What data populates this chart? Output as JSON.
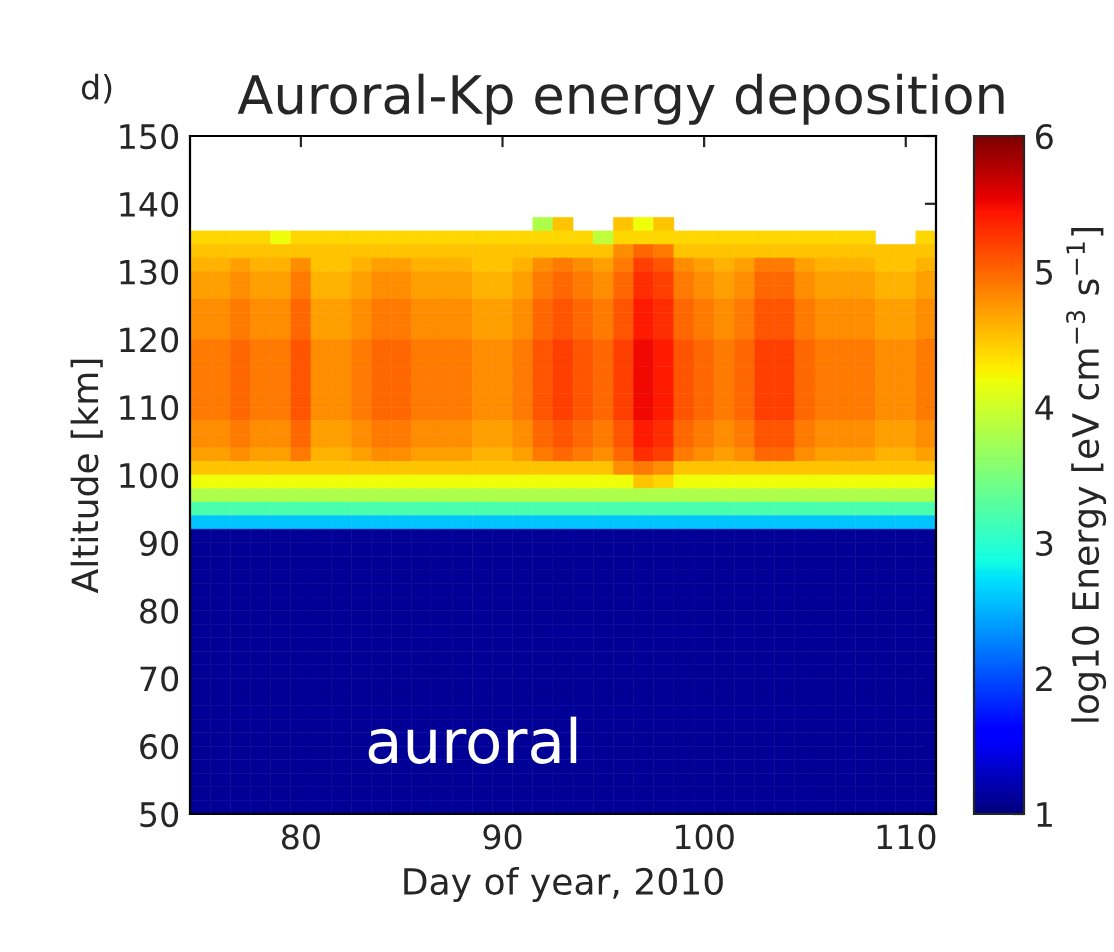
{
  "chart_data": {
    "type": "heatmap",
    "title": "Auroral-Kp energy deposition",
    "xlabel": "Day of year, 2010",
    "ylabel": "Altitude [km]",
    "clabel": "log10 Energy [eV cm$^{−3}$ s$^{−1}$]",
    "annotations": [
      "d)",
      "auroral"
    ],
    "x": [
      75,
      76,
      77,
      78,
      79,
      80,
      81,
      82,
      83,
      84,
      85,
      86,
      87,
      88,
      89,
      90,
      91,
      92,
      93,
      94,
      95,
      96,
      97,
      98,
      99,
      100,
      101,
      102,
      103,
      104,
      105,
      106,
      107,
      108,
      109,
      110,
      111
    ],
    "y": [
      137,
      135,
      133,
      131,
      129,
      127,
      125,
      123,
      121,
      119,
      117,
      115,
      113,
      111,
      109,
      107,
      105,
      103,
      101,
      99,
      97,
      95,
      93,
      91,
      89,
      87,
      85,
      83,
      81,
      79,
      77,
      75,
      73,
      71,
      69,
      67,
      65,
      63,
      61,
      59,
      57,
      55,
      53,
      51
    ],
    "cells": [
      [
        null,
        null,
        null,
        null,
        null,
        null,
        null,
        null,
        null,
        null,
        null,
        null,
        null,
        null,
        null,
        null,
        null,
        3.8,
        4.5,
        null,
        null,
        4.5,
        4.2,
        4.5,
        null,
        null,
        null,
        null,
        null,
        null,
        null,
        null,
        null,
        null,
        null,
        null,
        null
      ],
      [
        4.4,
        4.4,
        4.4,
        4.4,
        4.2,
        4.4,
        4.4,
        4.4,
        4.4,
        4.4,
        4.4,
        4.4,
        4.4,
        4.4,
        4.4,
        4.4,
        4.4,
        4.4,
        4.4,
        4.4,
        3.9,
        4.4,
        4.4,
        4.4,
        4.4,
        4.4,
        4.4,
        4.4,
        4.4,
        4.4,
        4.4,
        4.4,
        4.4,
        4.4,
        null,
        null,
        4.4
      ],
      [
        4.5,
        4.5,
        4.5,
        4.5,
        4.5,
        4.5,
        4.5,
        4.5,
        4.5,
        4.5,
        4.5,
        4.5,
        4.5,
        4.5,
        4.5,
        4.5,
        4.5,
        4.5,
        4.5,
        4.5,
        4.5,
        4.8,
        5.0,
        4.9,
        4.5,
        4.5,
        4.5,
        4.5,
        4.5,
        4.5,
        4.5,
        4.5,
        4.5,
        4.5,
        4.5,
        4.5,
        4.5
      ],
      [
        4.6,
        4.6,
        4.7,
        4.6,
        4.6,
        4.8,
        4.5,
        4.5,
        4.6,
        4.7,
        4.7,
        4.6,
        4.6,
        4.6,
        4.5,
        4.5,
        4.6,
        4.8,
        4.9,
        4.8,
        4.7,
        4.9,
        5.2,
        5.1,
        4.8,
        4.7,
        4.6,
        4.7,
        4.9,
        4.9,
        4.7,
        4.6,
        4.6,
        4.6,
        4.5,
        4.5,
        4.6
      ],
      [
        4.7,
        4.7,
        4.8,
        4.7,
        4.7,
        4.9,
        4.6,
        4.6,
        4.7,
        4.8,
        4.8,
        4.7,
        4.7,
        4.7,
        4.6,
        4.6,
        4.7,
        4.9,
        5.0,
        4.9,
        4.8,
        5.0,
        5.3,
        5.2,
        4.9,
        4.8,
        4.7,
        4.8,
        5.0,
        5.0,
        4.8,
        4.7,
        4.7,
        4.7,
        4.6,
        4.6,
        4.7
      ],
      [
        4.7,
        4.7,
        4.8,
        4.7,
        4.7,
        4.9,
        4.6,
        4.6,
        4.7,
        4.8,
        4.8,
        4.7,
        4.7,
        4.7,
        4.6,
        4.6,
        4.7,
        4.9,
        5.0,
        4.9,
        4.8,
        5.0,
        5.3,
        5.2,
        4.9,
        4.8,
        4.7,
        4.8,
        5.0,
        5.0,
        4.8,
        4.7,
        4.7,
        4.7,
        4.6,
        4.6,
        4.7
      ],
      [
        4.8,
        4.8,
        4.9,
        4.8,
        4.8,
        5.0,
        4.7,
        4.7,
        4.8,
        4.9,
        4.9,
        4.8,
        4.8,
        4.8,
        4.7,
        4.7,
        4.8,
        5.0,
        5.1,
        5.0,
        4.9,
        5.1,
        5.4,
        5.3,
        5.0,
        4.9,
        4.8,
        4.9,
        5.1,
        5.1,
        4.9,
        4.8,
        4.8,
        4.8,
        4.7,
        4.7,
        4.8
      ],
      [
        4.8,
        4.8,
        4.9,
        4.8,
        4.8,
        5.0,
        4.7,
        4.7,
        4.8,
        4.9,
        4.9,
        4.8,
        4.8,
        4.8,
        4.7,
        4.7,
        4.8,
        5.0,
        5.1,
        5.0,
        4.9,
        5.1,
        5.4,
        5.3,
        5.0,
        4.9,
        4.8,
        4.9,
        5.1,
        5.1,
        4.9,
        4.8,
        4.8,
        4.8,
        4.7,
        4.7,
        4.8
      ],
      [
        4.8,
        4.8,
        4.9,
        4.8,
        4.8,
        5.0,
        4.7,
        4.7,
        4.8,
        4.9,
        4.9,
        4.8,
        4.8,
        4.8,
        4.7,
        4.7,
        4.8,
        5.0,
        5.1,
        5.0,
        4.9,
        5.1,
        5.4,
        5.3,
        5.0,
        4.9,
        4.8,
        4.9,
        5.1,
        5.1,
        4.9,
        4.8,
        4.8,
        4.8,
        4.7,
        4.7,
        4.8
      ],
      [
        4.9,
        4.9,
        5.0,
        4.9,
        4.9,
        5.1,
        4.8,
        4.8,
        4.9,
        5.0,
        5.0,
        4.9,
        4.9,
        4.9,
        4.8,
        4.8,
        4.9,
        5.1,
        5.2,
        5.1,
        5.0,
        5.2,
        5.5,
        5.4,
        5.1,
        5.0,
        4.9,
        5.0,
        5.2,
        5.2,
        5.0,
        4.9,
        4.9,
        4.9,
        4.8,
        4.8,
        4.9
      ],
      [
        4.9,
        4.9,
        5.0,
        4.9,
        4.9,
        5.1,
        4.8,
        4.8,
        4.9,
        5.0,
        5.0,
        4.9,
        4.9,
        4.9,
        4.8,
        4.8,
        4.9,
        5.1,
        5.2,
        5.1,
        5.0,
        5.2,
        5.5,
        5.4,
        5.1,
        5.0,
        4.9,
        5.0,
        5.2,
        5.2,
        5.0,
        4.9,
        4.9,
        4.9,
        4.8,
        4.8,
        4.9
      ],
      [
        4.9,
        4.9,
        5.0,
        4.9,
        4.9,
        5.1,
        4.8,
        4.8,
        4.9,
        5.0,
        5.0,
        4.9,
        4.9,
        4.9,
        4.8,
        4.8,
        4.9,
        5.1,
        5.2,
        5.1,
        5.0,
        5.2,
        5.5,
        5.4,
        5.1,
        5.0,
        4.9,
        5.0,
        5.2,
        5.2,
        5.0,
        4.9,
        4.9,
        4.9,
        4.8,
        4.8,
        4.9
      ],
      [
        4.9,
        4.9,
        5.0,
        4.9,
        4.9,
        5.1,
        4.8,
        4.8,
        4.9,
        5.0,
        5.0,
        4.9,
        4.9,
        4.9,
        4.8,
        4.8,
        4.9,
        5.1,
        5.2,
        5.1,
        5.0,
        5.2,
        5.5,
        5.4,
        5.1,
        5.0,
        4.9,
        5.0,
        5.2,
        5.2,
        5.0,
        4.9,
        4.9,
        4.9,
        4.8,
        4.8,
        4.9
      ],
      [
        4.9,
        4.9,
        5.0,
        4.9,
        4.9,
        5.1,
        4.8,
        4.8,
        4.9,
        5.0,
        5.0,
        4.9,
        4.9,
        4.9,
        4.8,
        4.8,
        4.9,
        5.1,
        5.2,
        5.1,
        5.0,
        5.2,
        5.5,
        5.4,
        5.1,
        5.0,
        4.9,
        5.0,
        5.2,
        5.2,
        5.0,
        4.9,
        4.9,
        4.9,
        4.8,
        4.8,
        4.9
      ],
      [
        4.9,
        4.9,
        5.0,
        4.9,
        4.9,
        5.1,
        4.8,
        4.8,
        4.9,
        5.0,
        5.0,
        4.9,
        4.9,
        4.9,
        4.8,
        4.8,
        4.9,
        5.1,
        5.2,
        5.1,
        5.0,
        5.2,
        5.5,
        5.4,
        5.1,
        5.0,
        4.9,
        5.0,
        5.2,
        5.2,
        5.0,
        4.9,
        4.9,
        4.9,
        4.8,
        4.8,
        4.9
      ],
      [
        4.8,
        4.8,
        4.9,
        4.8,
        4.8,
        5.0,
        4.7,
        4.7,
        4.8,
        4.9,
        4.9,
        4.8,
        4.8,
        4.8,
        4.7,
        4.7,
        4.8,
        5.0,
        5.1,
        5.0,
        4.9,
        5.1,
        5.4,
        5.3,
        5.0,
        4.9,
        4.8,
        4.9,
        5.1,
        5.1,
        4.9,
        4.8,
        4.8,
        4.8,
        4.7,
        4.7,
        4.8
      ],
      [
        4.8,
        4.8,
        4.9,
        4.8,
        4.8,
        5.0,
        4.7,
        4.7,
        4.8,
        4.9,
        4.9,
        4.8,
        4.8,
        4.8,
        4.7,
        4.7,
        4.8,
        5.0,
        5.1,
        5.0,
        4.9,
        5.1,
        5.4,
        5.3,
        5.0,
        4.9,
        4.8,
        4.9,
        5.1,
        5.1,
        4.9,
        4.8,
        4.8,
        4.8,
        4.7,
        4.7,
        4.8
      ],
      [
        4.7,
        4.7,
        4.8,
        4.7,
        4.7,
        4.9,
        4.6,
        4.6,
        4.7,
        4.8,
        4.8,
        4.7,
        4.7,
        4.7,
        4.6,
        4.6,
        4.7,
        4.9,
        5.0,
        4.9,
        4.8,
        5.0,
        5.3,
        5.2,
        4.9,
        4.8,
        4.7,
        4.8,
        5.0,
        5.0,
        4.8,
        4.7,
        4.7,
        4.7,
        4.6,
        4.6,
        4.7
      ],
      [
        4.5,
        4.5,
        4.5,
        4.5,
        4.5,
        4.5,
        4.5,
        4.5,
        4.5,
        4.5,
        4.5,
        4.5,
        4.5,
        4.5,
        4.5,
        4.5,
        4.5,
        4.5,
        4.5,
        4.5,
        4.5,
        4.8,
        4.9,
        4.8,
        4.5,
        4.5,
        4.5,
        4.5,
        4.5,
        4.5,
        4.5,
        4.5,
        4.5,
        4.5,
        4.5,
        4.5,
        4.5
      ],
      [
        4.2,
        4.2,
        4.2,
        4.2,
        4.2,
        4.2,
        4.2,
        4.2,
        4.2,
        4.2,
        4.2,
        4.2,
        4.2,
        4.2,
        4.2,
        4.2,
        4.2,
        4.2,
        4.2,
        4.2,
        4.2,
        4.2,
        4.5,
        4.4,
        4.2,
        4.2,
        4.2,
        4.2,
        4.2,
        4.2,
        4.2,
        4.2,
        4.2,
        4.2,
        4.2,
        4.2,
        4.2
      ],
      [
        3.8,
        3.8,
        3.8,
        3.8,
        3.8,
        3.8,
        3.8,
        3.8,
        3.8,
        3.8,
        3.8,
        3.8,
        3.8,
        3.8,
        3.8,
        3.8,
        3.8,
        3.8,
        3.8,
        3.8,
        3.8,
        3.8,
        3.8,
        3.8,
        3.8,
        3.8,
        3.8,
        3.8,
        3.8,
        3.8,
        3.8,
        3.8,
        3.8,
        3.8,
        3.8,
        3.8,
        3.8
      ],
      [
        3.2,
        3.2,
        3.2,
        3.2,
        3.2,
        3.2,
        3.2,
        3.2,
        3.2,
        3.2,
        3.2,
        3.2,
        3.2,
        3.2,
        3.2,
        3.2,
        3.2,
        3.2,
        3.2,
        3.2,
        3.2,
        3.2,
        3.2,
        3.2,
        3.2,
        3.2,
        3.2,
        3.2,
        3.2,
        3.2,
        3.2,
        3.2,
        3.2,
        3.2,
        3.2,
        3.2,
        3.2
      ],
      [
        2.6,
        2.6,
        2.6,
        2.6,
        2.6,
        2.6,
        2.6,
        2.6,
        2.6,
        2.6,
        2.6,
        2.6,
        2.6,
        2.6,
        2.6,
        2.6,
        2.6,
        2.6,
        2.6,
        2.6,
        2.6,
        2.6,
        2.6,
        2.6,
        2.6,
        2.6,
        2.6,
        2.6,
        2.6,
        2.6,
        2.6,
        2.6,
        2.6,
        2.6,
        2.6,
        2.6,
        2.6
      ],
      [
        1.1,
        1.1,
        1.1,
        1.1,
        1.1,
        1.1,
        1.1,
        1.1,
        1.1,
        1.1,
        1.1,
        1.1,
        1.1,
        1.1,
        1.1,
        1.1,
        1.1,
        1.1,
        1.1,
        1.1,
        1.1,
        1.1,
        1.1,
        1.1,
        1.1,
        1.1,
        1.1,
        1.1,
        1.1,
        1.1,
        1.1,
        1.1,
        1.1,
        1.1,
        1.1,
        1.1,
        1.1
      ],
      [
        1.1,
        1.1,
        1.1,
        1.1,
        1.1,
        1.1,
        1.1,
        1.1,
        1.1,
        1.1,
        1.1,
        1.1,
        1.1,
        1.1,
        1.1,
        1.1,
        1.1,
        1.1,
        1.1,
        1.1,
        1.1,
        1.1,
        1.1,
        1.1,
        1.1,
        1.1,
        1.1,
        1.1,
        1.1,
        1.1,
        1.1,
        1.1,
        1.1,
        1.1,
        1.1,
        1.1,
        1.1
      ],
      [
        1.1,
        1.1,
        1.1,
        1.1,
        1.1,
        1.1,
        1.1,
        1.1,
        1.1,
        1.1,
        1.1,
        1.1,
        1.1,
        1.1,
        1.1,
        1.1,
        1.1,
        1.1,
        1.1,
        1.1,
        1.1,
        1.1,
        1.1,
        1.1,
        1.1,
        1.1,
        1.1,
        1.1,
        1.1,
        1.1,
        1.1,
        1.1,
        1.1,
        1.1,
        1.1,
        1.1,
        1.1
      ],
      [
        1.1,
        1.1,
        1.1,
        1.1,
        1.1,
        1.1,
        1.1,
        1.1,
        1.1,
        1.1,
        1.1,
        1.1,
        1.1,
        1.1,
        1.1,
        1.1,
        1.1,
        1.1,
        1.1,
        1.1,
        1.1,
        1.1,
        1.1,
        1.1,
        1.1,
        1.1,
        1.1,
        1.1,
        1.1,
        1.1,
        1.1,
        1.1,
        1.1,
        1.1,
        1.1,
        1.1,
        1.1
      ],
      [
        1.1,
        1.1,
        1.1,
        1.1,
        1.1,
        1.1,
        1.1,
        1.1,
        1.1,
        1.1,
        1.1,
        1.1,
        1.1,
        1.1,
        1.1,
        1.1,
        1.1,
        1.1,
        1.1,
        1.1,
        1.1,
        1.1,
        1.1,
        1.1,
        1.1,
        1.1,
        1.1,
        1.1,
        1.1,
        1.1,
        1.1,
        1.1,
        1.1,
        1.1,
        1.1,
        1.1,
        1.1
      ],
      [
        1.1,
        1.1,
        1.1,
        1.1,
        1.1,
        1.1,
        1.1,
        1.1,
        1.1,
        1.1,
        1.1,
        1.1,
        1.1,
        1.1,
        1.1,
        1.1,
        1.1,
        1.1,
        1.1,
        1.1,
        1.1,
        1.1,
        1.1,
        1.1,
        1.1,
        1.1,
        1.1,
        1.1,
        1.1,
        1.1,
        1.1,
        1.1,
        1.1,
        1.1,
        1.1,
        1.1,
        1.1
      ],
      [
        1.1,
        1.1,
        1.1,
        1.1,
        1.1,
        1.1,
        1.1,
        1.1,
        1.1,
        1.1,
        1.1,
        1.1,
        1.1,
        1.1,
        1.1,
        1.1,
        1.1,
        1.1,
        1.1,
        1.1,
        1.1,
        1.1,
        1.1,
        1.1,
        1.1,
        1.1,
        1.1,
        1.1,
        1.1,
        1.1,
        1.1,
        1.1,
        1.1,
        1.1,
        1.1,
        1.1,
        1.1
      ],
      [
        1.1,
        1.1,
        1.1,
        1.1,
        1.1,
        1.1,
        1.1,
        1.1,
        1.1,
        1.1,
        1.1,
        1.1,
        1.1,
        1.1,
        1.1,
        1.1,
        1.1,
        1.1,
        1.1,
        1.1,
        1.1,
        1.1,
        1.1,
        1.1,
        1.1,
        1.1,
        1.1,
        1.1,
        1.1,
        1.1,
        1.1,
        1.1,
        1.1,
        1.1,
        1.1,
        1.1,
        1.1
      ],
      [
        1.1,
        1.1,
        1.1,
        1.1,
        1.1,
        1.1,
        1.1,
        1.1,
        1.1,
        1.1,
        1.1,
        1.1,
        1.1,
        1.1,
        1.1,
        1.1,
        1.1,
        1.1,
        1.1,
        1.1,
        1.1,
        1.1,
        1.1,
        1.1,
        1.1,
        1.1,
        1.1,
        1.1,
        1.1,
        1.1,
        1.1,
        1.1,
        1.1,
        1.1,
        1.1,
        1.1,
        1.1
      ],
      [
        1.1,
        1.1,
        1.1,
        1.1,
        1.1,
        1.1,
        1.1,
        1.1,
        1.1,
        1.1,
        1.1,
        1.1,
        1.1,
        1.1,
        1.1,
        1.1,
        1.1,
        1.1,
        1.1,
        1.1,
        1.1,
        1.1,
        1.1,
        1.1,
        1.1,
        1.1,
        1.1,
        1.1,
        1.1,
        1.1,
        1.1,
        1.1,
        1.1,
        1.1,
        1.1,
        1.1,
        1.1
      ],
      [
        1.1,
        1.1,
        1.1,
        1.1,
        1.1,
        1.1,
        1.1,
        1.1,
        1.1,
        1.1,
        1.1,
        1.1,
        1.1,
        1.1,
        1.1,
        1.1,
        1.1,
        1.1,
        1.1,
        1.1,
        1.1,
        1.1,
        1.1,
        1.1,
        1.1,
        1.1,
        1.1,
        1.1,
        1.1,
        1.1,
        1.1,
        1.1,
        1.1,
        1.1,
        1.1,
        1.1,
        1.1
      ],
      [
        1.1,
        1.1,
        1.1,
        1.1,
        1.1,
        1.1,
        1.1,
        1.1,
        1.1,
        1.1,
        1.1,
        1.1,
        1.1,
        1.1,
        1.1,
        1.1,
        1.1,
        1.1,
        1.1,
        1.1,
        1.1,
        1.1,
        1.1,
        1.1,
        1.1,
        1.1,
        1.1,
        1.1,
        1.1,
        1.1,
        1.1,
        1.1,
        1.1,
        1.1,
        1.1,
        1.1,
        1.1
      ],
      [
        1.1,
        1.1,
        1.1,
        1.1,
        1.1,
        1.1,
        1.1,
        1.1,
        1.1,
        1.1,
        1.1,
        1.1,
        1.1,
        1.1,
        1.1,
        1.1,
        1.1,
        1.1,
        1.1,
        1.1,
        1.1,
        1.1,
        1.1,
        1.1,
        1.1,
        1.1,
        1.1,
        1.1,
        1.1,
        1.1,
        1.1,
        1.1,
        1.1,
        1.1,
        1.1,
        1.1,
        1.1
      ],
      [
        1.1,
        1.1,
        1.1,
        1.1,
        1.1,
        1.1,
        1.1,
        1.1,
        1.1,
        1.1,
        1.1,
        1.1,
        1.1,
        1.1,
        1.1,
        1.1,
        1.1,
        1.1,
        1.1,
        1.1,
        1.1,
        1.1,
        1.1,
        1.1,
        1.1,
        1.1,
        1.1,
        1.1,
        1.1,
        1.1,
        1.1,
        1.1,
        1.1,
        1.1,
        1.1,
        1.1,
        1.1
      ],
      [
        1.1,
        1.1,
        1.1,
        1.1,
        1.1,
        1.1,
        1.1,
        1.1,
        1.1,
        1.1,
        1.1,
        1.1,
        1.1,
        1.1,
        1.1,
        1.1,
        1.1,
        1.1,
        1.1,
        1.1,
        1.1,
        1.1,
        1.1,
        1.1,
        1.1,
        1.1,
        1.1,
        1.1,
        1.1,
        1.1,
        1.1,
        1.1,
        1.1,
        1.1,
        1.1,
        1.1,
        1.1
      ],
      [
        1.1,
        1.1,
        1.1,
        1.1,
        1.1,
        1.1,
        1.1,
        1.1,
        1.1,
        1.1,
        1.1,
        1.1,
        1.1,
        1.1,
        1.1,
        1.1,
        1.1,
        1.1,
        1.1,
        1.1,
        1.1,
        1.1,
        1.1,
        1.1,
        1.1,
        1.1,
        1.1,
        1.1,
        1.1,
        1.1,
        1.1,
        1.1,
        1.1,
        1.1,
        1.1,
        1.1,
        1.1
      ],
      [
        1.1,
        1.1,
        1.1,
        1.1,
        1.1,
        1.1,
        1.1,
        1.1,
        1.1,
        1.1,
        1.1,
        1.1,
        1.1,
        1.1,
        1.1,
        1.1,
        1.1,
        1.1,
        1.1,
        1.1,
        1.1,
        1.1,
        1.1,
        1.1,
        1.1,
        1.1,
        1.1,
        1.1,
        1.1,
        1.1,
        1.1,
        1.1,
        1.1,
        1.1,
        1.1,
        1.1,
        1.1
      ],
      [
        1.1,
        1.1,
        1.1,
        1.1,
        1.1,
        1.1,
        1.1,
        1.1,
        1.1,
        1.1,
        1.1,
        1.1,
        1.1,
        1.1,
        1.1,
        1.1,
        1.1,
        1.1,
        1.1,
        1.1,
        1.1,
        1.1,
        1.1,
        1.1,
        1.1,
        1.1,
        1.1,
        1.1,
        1.1,
        1.1,
        1.1,
        1.1,
        1.1,
        1.1,
        1.1,
        1.1,
        1.1
      ],
      [
        1.1,
        1.1,
        1.1,
        1.1,
        1.1,
        1.1,
        1.1,
        1.1,
        1.1,
        1.1,
        1.1,
        1.1,
        1.1,
        1.1,
        1.1,
        1.1,
        1.1,
        1.1,
        1.1,
        1.1,
        1.1,
        1.1,
        1.1,
        1.1,
        1.1,
        1.1,
        1.1,
        1.1,
        1.1,
        1.1,
        1.1,
        1.1,
        1.1,
        1.1,
        1.1,
        1.1,
        1.1
      ],
      [
        1.1,
        1.1,
        1.1,
        1.1,
        1.1,
        1.1,
        1.1,
        1.1,
        1.1,
        1.1,
        1.1,
        1.1,
        1.1,
        1.1,
        1.1,
        1.1,
        1.1,
        1.1,
        1.1,
        1.1,
        1.1,
        1.1,
        1.1,
        1.1,
        1.1,
        1.1,
        1.1,
        1.1,
        1.1,
        1.1,
        1.1,
        1.1,
        1.1,
        1.1,
        1.1,
        1.1,
        1.1
      ],
      [
        1.1,
        1.1,
        1.1,
        1.1,
        1.1,
        1.1,
        1.1,
        1.1,
        1.1,
        1.1,
        1.1,
        1.1,
        1.1,
        1.1,
        1.1,
        1.1,
        1.1,
        1.1,
        1.1,
        1.1,
        1.1,
        1.1,
        1.1,
        1.1,
        1.1,
        1.1,
        1.1,
        1.1,
        1.1,
        1.1,
        1.1,
        1.1,
        1.1,
        1.1,
        1.1,
        1.1,
        1.1
      ]
    ],
    "clim": [
      1,
      6
    ],
    "cticks": [
      1,
      2,
      3,
      4,
      5,
      6
    ],
    "xlim": [
      74.5,
      111.5
    ],
    "xticks": [
      80,
      90,
      100,
      110
    ],
    "ylim": [
      50,
      150
    ],
    "yticks": [
      50,
      60,
      70,
      80,
      90,
      100,
      110,
      120,
      130,
      140,
      150
    ]
  }
}
